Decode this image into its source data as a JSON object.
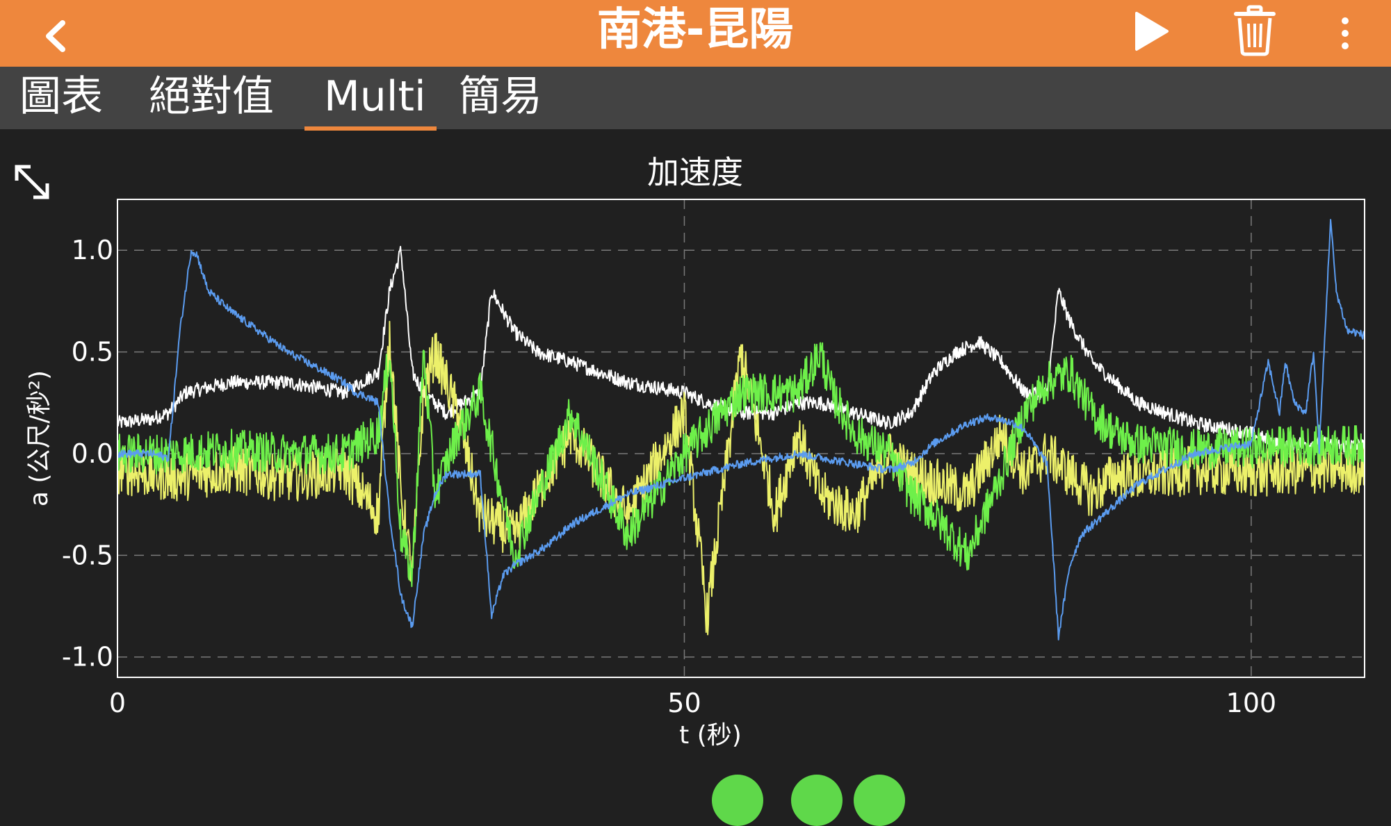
{
  "header": {
    "title": "南港-昆陽",
    "bg_color": "#ee873d"
  },
  "icons": {
    "back": "chevron-left-icon",
    "play": "play-icon",
    "trash": "trash-icon",
    "more": "more-vertical-icon",
    "expand": "expand-icon"
  },
  "tabs": [
    {
      "label": "圖表"
    },
    {
      "label": "絕對值"
    },
    {
      "label": "Multi",
      "selected": true
    },
    {
      "label": "簡易"
    }
  ],
  "chart_data": {
    "type": "line",
    "title": "加速度",
    "xlabel": "t (秒)",
    "ylabel": "a (公尺/秒²)",
    "xlim": [
      0,
      110
    ],
    "ylim": [
      -1.1,
      1.25
    ],
    "x_ticks": [
      0,
      50,
      100
    ],
    "y_ticks": [
      1.0,
      0.5,
      0.0,
      -0.5,
      -1.0
    ],
    "x_tick_labels": [
      "0",
      "50",
      "100"
    ],
    "y_tick_labels": [
      "1.0",
      "0.5",
      "0.0",
      "-0.5",
      "-1.0"
    ],
    "grid": true,
    "legend": "none",
    "series": [
      {
        "color": "#ffffff",
        "x": [
          0,
          3,
          4.5,
          6,
          10,
          15,
          20,
          23,
          24,
          25,
          26,
          27,
          29,
          32,
          33,
          34,
          35,
          37,
          40,
          45,
          50,
          52,
          55,
          58,
          60,
          62,
          65,
          68,
          70,
          72,
          74,
          76,
          78,
          80,
          82,
          83,
          84,
          86,
          88,
          90,
          95,
          100,
          102,
          104,
          106,
          108,
          110
        ],
        "y": [
          0.15,
          0.17,
          0.2,
          0.3,
          0.35,
          0.35,
          0.3,
          0.4,
          0.8,
          1.0,
          0.4,
          0.3,
          0.2,
          0.3,
          0.8,
          0.7,
          0.6,
          0.5,
          0.45,
          0.35,
          0.3,
          0.25,
          0.2,
          0.2,
          0.25,
          0.25,
          0.2,
          0.15,
          0.2,
          0.4,
          0.5,
          0.55,
          0.45,
          0.3,
          0.3,
          0.8,
          0.65,
          0.45,
          0.35,
          0.25,
          0.15,
          0.1,
          0.05,
          0.05,
          0.05,
          0.04,
          0.04
        ]
      },
      {
        "color": "#5b9cf0",
        "x": [
          0,
          3,
          4.5,
          5.5,
          6.5,
          7,
          8,
          10,
          15,
          20,
          21,
          22,
          23,
          24,
          25,
          26,
          27,
          28,
          29,
          32,
          33,
          34,
          35,
          38,
          40,
          45,
          50,
          55,
          60,
          65,
          68,
          70,
          72,
          75,
          77,
          79,
          80,
          82,
          83,
          84,
          85,
          88,
          90,
          95,
          100,
          101.5,
          102.5,
          103,
          103.8,
          104.8,
          105.5,
          106,
          107,
          107.5,
          108,
          108.5,
          109,
          110
        ],
        "y": [
          0.0,
          0.0,
          -0.02,
          0.6,
          1.0,
          0.98,
          0.8,
          0.7,
          0.5,
          0.35,
          0.3,
          0.28,
          0.25,
          -0.3,
          -0.7,
          -0.85,
          -0.4,
          -0.2,
          -0.1,
          -0.1,
          -0.8,
          -0.6,
          -0.55,
          -0.45,
          -0.35,
          -0.2,
          -0.12,
          -0.05,
          0.0,
          -0.05,
          -0.08,
          -0.05,
          0.05,
          0.15,
          0.18,
          0.15,
          0.12,
          -0.05,
          -0.9,
          -0.55,
          -0.4,
          -0.25,
          -0.15,
          0.0,
          0.05,
          0.45,
          0.2,
          0.45,
          0.25,
          0.2,
          0.5,
          0.02,
          1.15,
          0.8,
          0.7,
          0.6,
          0.6,
          0.58
        ]
      },
      {
        "color": "#ecf06a",
        "x": [
          0,
          5,
          10,
          15,
          20,
          23,
          24,
          25,
          26,
          27,
          28,
          30,
          32,
          35,
          40,
          45,
          50,
          52,
          55,
          58,
          60,
          62,
          65,
          68,
          70,
          75,
          78,
          80,
          82,
          84,
          86,
          88,
          90,
          95,
          100,
          105,
          110
        ],
        "y": [
          -0.08,
          -0.12,
          -0.08,
          -0.12,
          -0.08,
          -0.3,
          0.6,
          -0.2,
          -0.6,
          0.3,
          0.5,
          0.2,
          -0.3,
          -0.4,
          0.1,
          -0.3,
          0.2,
          -0.8,
          0.5,
          -0.3,
          0.1,
          -0.2,
          -0.3,
          0.0,
          -0.1,
          -0.2,
          0.1,
          -0.1,
          0.0,
          -0.1,
          -0.2,
          -0.1,
          -0.12,
          -0.08,
          -0.1,
          -0.08,
          -0.08
        ]
      },
      {
        "color": "#6ef04a",
        "x": [
          0,
          5,
          10,
          15,
          20,
          23,
          24,
          25,
          26,
          27,
          28,
          30,
          32,
          35,
          40,
          45,
          50,
          55,
          60,
          62,
          63,
          64,
          65,
          68,
          70,
          72,
          75,
          78,
          80,
          82,
          84,
          86,
          88,
          90,
          95,
          100,
          105,
          110
        ],
        "y": [
          0.0,
          0.0,
          0.02,
          0.0,
          0.0,
          0.1,
          0.5,
          -0.4,
          -0.6,
          0.5,
          -0.2,
          0.1,
          0.3,
          -0.5,
          0.2,
          -0.4,
          0.0,
          0.3,
          0.3,
          0.5,
          0.3,
          0.2,
          0.1,
          0.0,
          -0.2,
          -0.3,
          -0.5,
          -0.1,
          0.2,
          0.35,
          0.4,
          0.2,
          0.1,
          0.05,
          0.02,
          0.03,
          0.04,
          0.04
        ]
      }
    ]
  }
}
